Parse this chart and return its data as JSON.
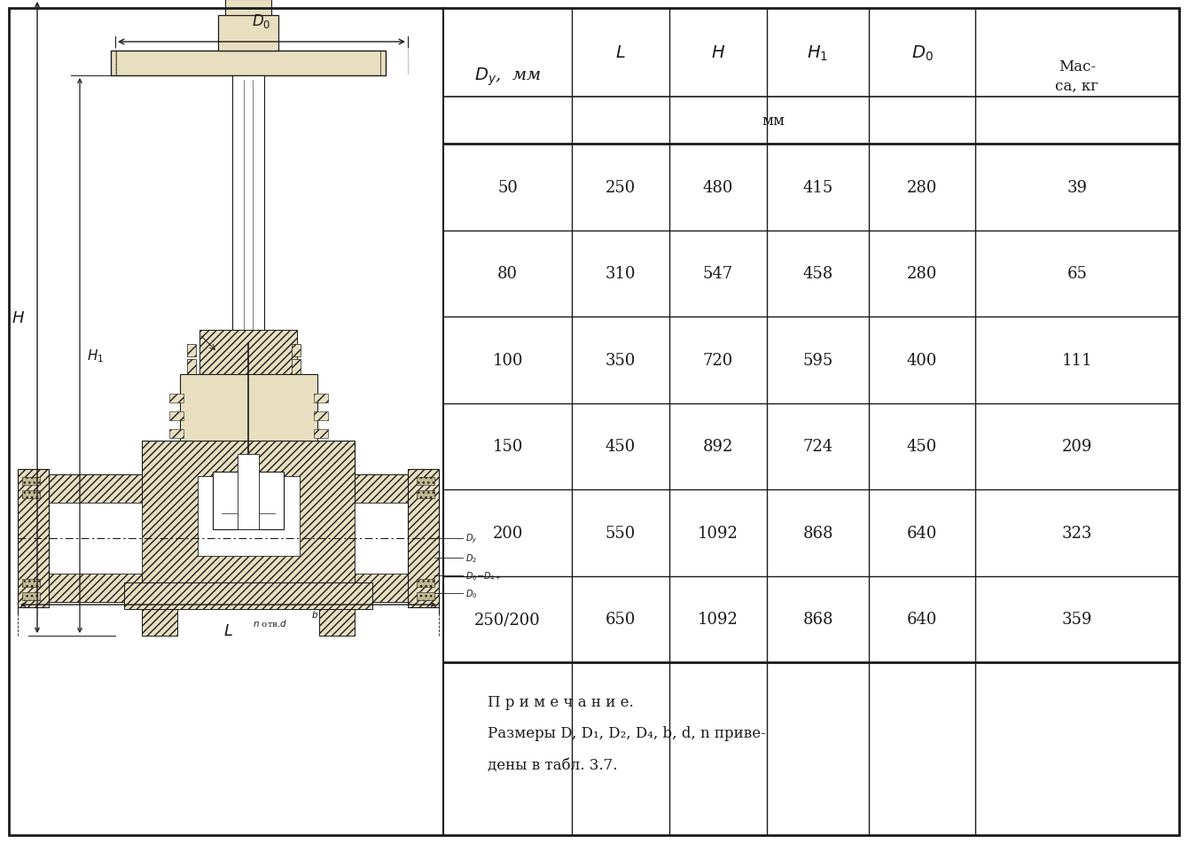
{
  "rows": [
    [
      "50",
      "250",
      "480",
      "415",
      "280",
      "39"
    ],
    [
      "80",
      "310",
      "547",
      "458",
      "280",
      "65"
    ],
    [
      "100",
      "350",
      "720",
      "595",
      "400",
      "111"
    ],
    [
      "150",
      "450",
      "892",
      "724",
      "450",
      "209"
    ],
    [
      "200",
      "550",
      "1092",
      "868",
      "640",
      "323"
    ],
    [
      "250/200",
      "650",
      "1092",
      "868",
      "640",
      "359"
    ]
  ],
  "note_line1": "П р и м е ч а н и е.",
  "note_line2": "Размеры D, D₁, D₂, D₄, b, d, n приве-",
  "note_line3": "дены в табл. 3.7.",
  "bg_color": "#ffffff",
  "line_color": "#1a1a1a",
  "text_color": "#1a1a1a"
}
